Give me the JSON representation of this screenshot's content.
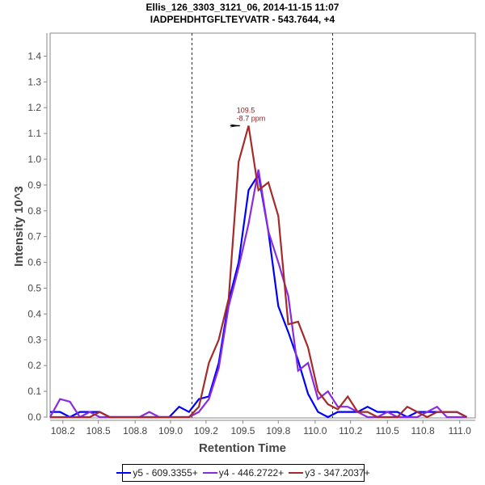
{
  "chart_data": {
    "type": "line",
    "title": "Ellis_126_3303_3121_06, 2014-11-15 11:07",
    "subtitle": "IADPEHDHTGFLTEYVATR - 543.7644, +4",
    "xlabel": "Retention Time",
    "ylabel": "Intensity 10^3",
    "xlim": [
      108.11,
      111.11
    ],
    "ylim": [
      0.0,
      1.48
    ],
    "x_ticks": [
      "108.2",
      "108.5",
      "108.8",
      "109.0",
      "109.2",
      "109.5",
      "109.8",
      "110.0",
      "110.2",
      "110.5",
      "110.8",
      "111.0"
    ],
    "x_tick_values": [
      108.2,
      108.45,
      108.71,
      108.96,
      109.21,
      109.47,
      109.72,
      109.98,
      110.23,
      110.49,
      110.74,
      111.0
    ],
    "y_ticks": [
      "0.0",
      "0.1",
      "0.2",
      "0.3",
      "0.4",
      "0.5",
      "0.6",
      "0.7",
      "0.8",
      "0.9",
      "1.0",
      "1.1",
      "1.2",
      "1.3",
      "1.4"
    ],
    "y_tick_values": [
      0.0,
      0.1,
      0.2,
      0.3,
      0.4,
      0.5,
      0.6,
      0.7,
      0.8,
      0.9,
      1.0,
      1.1,
      1.2,
      1.3,
      1.4
    ],
    "grid": false,
    "legend_position": "bottom",
    "vertical_markers": [
      109.11,
      110.1
    ],
    "annotation": {
      "x": 109.46,
      "y": 1.13,
      "lines": [
        "109.5",
        "-8.7 ppm"
      ]
    },
    "x": [
      108.11,
      108.18,
      108.25,
      108.32,
      108.39,
      108.46,
      108.53,
      108.6,
      108.67,
      108.74,
      108.81,
      108.88,
      108.95,
      109.02,
      109.09,
      109.16,
      109.23,
      109.3,
      109.37,
      109.44,
      109.51,
      109.58,
      109.65,
      109.72,
      109.79,
      109.86,
      109.93,
      110.0,
      110.07,
      110.14,
      110.21,
      110.28,
      110.35,
      110.42,
      110.49,
      110.56,
      110.63,
      110.7,
      110.77,
      110.84,
      110.91,
      110.98,
      111.05
    ],
    "series": [
      {
        "name": "y5 - 609.3355+",
        "color": "#0000ff",
        "values": [
          0.02,
          0.02,
          0.0,
          0.02,
          0.02,
          0.02,
          0.0,
          0.0,
          0.0,
          0.0,
          0.0,
          0.0,
          0.0,
          0.04,
          0.02,
          0.07,
          0.08,
          0.21,
          0.45,
          0.6,
          0.88,
          0.94,
          0.72,
          0.43,
          0.33,
          0.22,
          0.09,
          0.02,
          0.0,
          0.02,
          0.02,
          0.02,
          0.04,
          0.02,
          0.02,
          0.02,
          0.0,
          0.02,
          0.02,
          0.02,
          0.02,
          0.02,
          0.0
        ]
      },
      {
        "name": "y4 - 446.2722+",
        "color": "#8a2be2",
        "values": [
          0.0,
          0.07,
          0.06,
          0.0,
          0.02,
          0.0,
          0.0,
          0.0,
          0.0,
          0.0,
          0.02,
          0.0,
          0.0,
          0.0,
          0.0,
          0.02,
          0.07,
          0.19,
          0.43,
          0.58,
          0.75,
          0.96,
          0.72,
          0.6,
          0.47,
          0.18,
          0.21,
          0.07,
          0.1,
          0.04,
          0.04,
          0.02,
          0.0,
          0.0,
          0.02,
          0.0,
          0.0,
          0.0,
          0.02,
          0.04,
          0.0,
          0.0,
          0.0
        ]
      },
      {
        "name": "y3 - 347.2037+",
        "color": "#a52a2a",
        "values": [
          0.0,
          0.0,
          0.0,
          0.0,
          0.0,
          0.02,
          0.0,
          0.0,
          0.0,
          0.0,
          0.0,
          0.0,
          0.0,
          0.0,
          0.0,
          0.04,
          0.21,
          0.3,
          0.46,
          0.99,
          1.13,
          0.88,
          0.91,
          0.78,
          0.36,
          0.37,
          0.27,
          0.1,
          0.05,
          0.03,
          0.08,
          0.02,
          0.02,
          0.0,
          0.0,
          0.0,
          0.04,
          0.02,
          0.0,
          0.02,
          0.02,
          0.02,
          0.0
        ]
      }
    ]
  },
  "legend": {
    "items": [
      {
        "label": "y5 - 609.3355+",
        "color": "#0000ff"
      },
      {
        "label": "y4 - 446.2722+",
        "color": "#8a2be2"
      },
      {
        "label": "y3 - 347.2037+",
        "color": "#a52a2a"
      }
    ]
  }
}
